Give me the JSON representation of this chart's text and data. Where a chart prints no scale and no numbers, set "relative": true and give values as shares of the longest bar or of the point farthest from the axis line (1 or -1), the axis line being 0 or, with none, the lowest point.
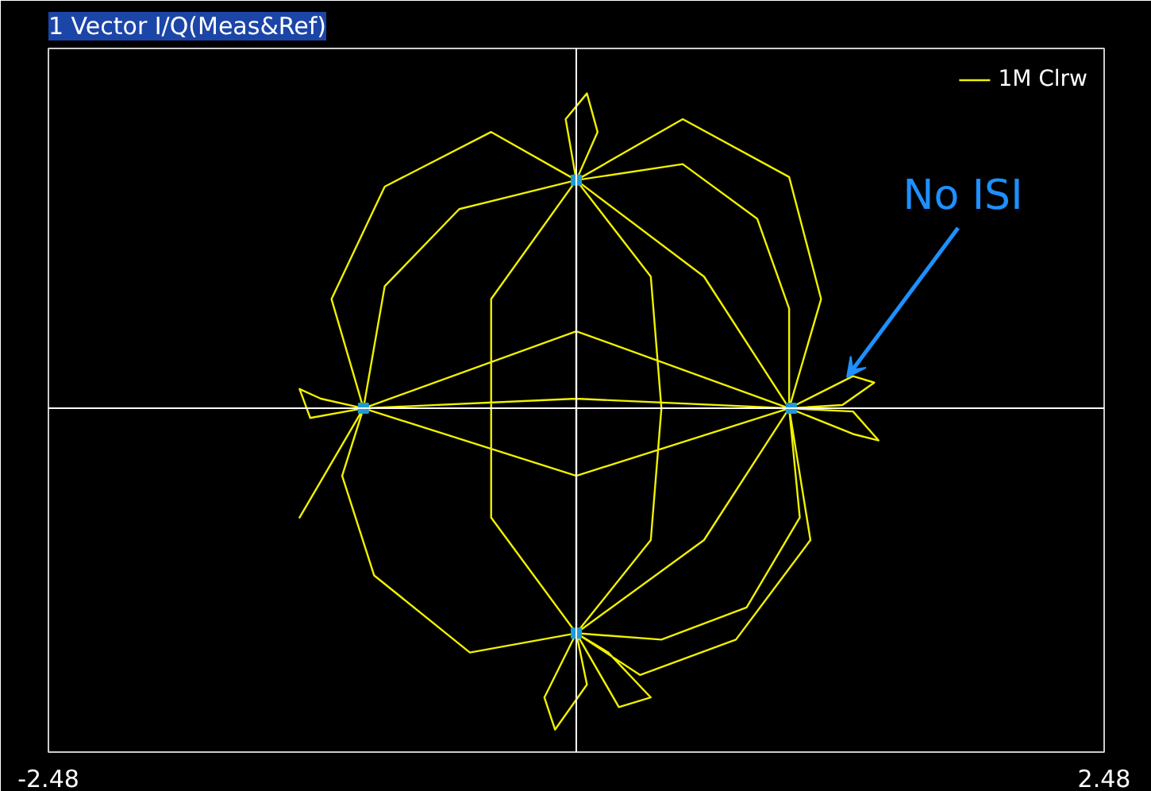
{
  "chart_data": {
    "type": "line",
    "title": "1 Vector I/Q(Meas&Ref)",
    "relative": true,
    "xlim": [
      -2.48,
      2.48
    ],
    "xticks": [
      -2.48,
      2.48
    ],
    "tick_labels": "x",
    "grid": false,
    "legend": "top right",
    "ref_lines": [
      {
        "axis": "x",
        "value": 0,
        "color": "#ffffff"
      }
    ],
    "annotations": [
      "No ISI"
    ],
    "series": [
      {
        "name": "1M Clrw",
        "color": "#f0f000",
        "marker": "none",
        "line_style": "solid",
        "x": [
          1,
          1.0,
          0.85,
          0.5,
          0,
          0,
          0,
          0.35,
          0.4,
          0.35,
          0,
          -0.55,
          -0.9,
          -1,
          -1.2,
          -1.3,
          -1.25,
          -1,
          0,
          1,
          1.3,
          1.4,
          1.25,
          1,
          1.3,
          1.42,
          1.3,
          1,
          1.05,
          0.8,
          0.4,
          0,
          -0.15,
          -0.1,
          0.05,
          0,
          0.2,
          0.35,
          0.15,
          0,
          -0.5,
          -0.95,
          -1.1,
          -1,
          -1.3,
          -1,
          -1.15,
          -0.9,
          -0.4,
          0,
          -0.05,
          0.05,
          0.1,
          0,
          0.5,
          1.0,
          1.15,
          1,
          0,
          -1,
          0,
          1,
          0.6,
          0,
          -0.4,
          -0.4,
          0,
          0.6,
          1,
          1.1,
          0.75,
          0.3,
          0
        ],
        "values": [
          0,
          0.31,
          0.59,
          0.76,
          0.71,
          0,
          -0.7,
          -0.41,
          0,
          0.41,
          0.71,
          0.62,
          0.38,
          0,
          0.03,
          0.06,
          -0.03,
          0,
          0.03,
          0,
          0.1,
          0.08,
          0.01,
          0,
          -0.08,
          -0.1,
          -0.01,
          0,
          -0.34,
          -0.62,
          -0.72,
          -0.7,
          -0.9,
          -1,
          -0.86,
          -0.7,
          -0.93,
          -0.9,
          -0.76,
          -0.7,
          -0.76,
          -0.52,
          -0.21,
          0,
          -0.34,
          0,
          0.34,
          0.69,
          0.86,
          0.71,
          0.9,
          0.98,
          0.86,
          0.71,
          0.9,
          0.72,
          0.34,
          0,
          -0.21,
          0,
          0.24,
          0,
          -0.41,
          -0.7,
          -0.34,
          0.34,
          0.71,
          0.41,
          0,
          -0.41,
          -0.72,
          -0.83,
          -0.7
        ]
      },
      {
        "type": "scatter",
        "color": "#1e9ad6",
        "marker": "square",
        "x": [
          1.01,
          -1.0,
          0,
          0
        ],
        "values": [
          0,
          0,
          0.71,
          -0.7
        ]
      }
    ]
  }
}
